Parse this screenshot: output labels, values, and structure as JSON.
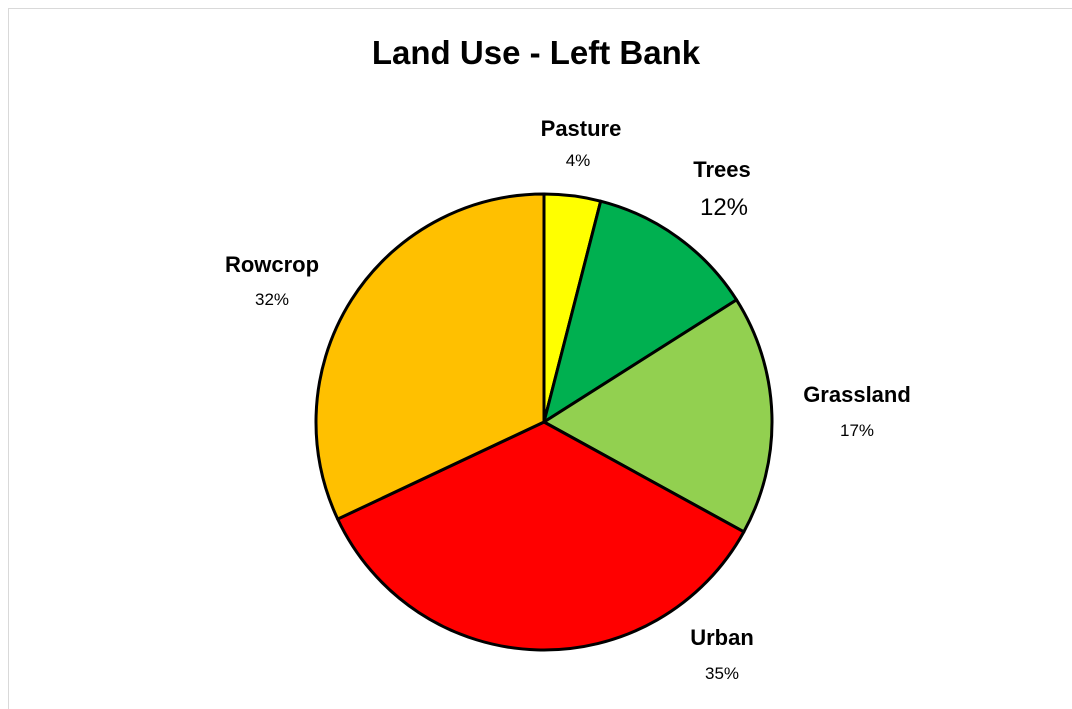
{
  "chart_data": {
    "type": "pie",
    "title": "Land Use - Left Bank",
    "categories": [
      "Pasture",
      "Trees",
      "Grassland",
      "Urban",
      "Rowcrop"
    ],
    "values": [
      4,
      12,
      17,
      35,
      32
    ],
    "labels": [
      "4%",
      "12%",
      "17%",
      "35%",
      "32%"
    ],
    "colors": [
      "#ffff00",
      "#00b050",
      "#92d050",
      "#ff0000",
      "#ffc000"
    ],
    "start_angle_deg": 0,
    "direction": "clockwise"
  }
}
